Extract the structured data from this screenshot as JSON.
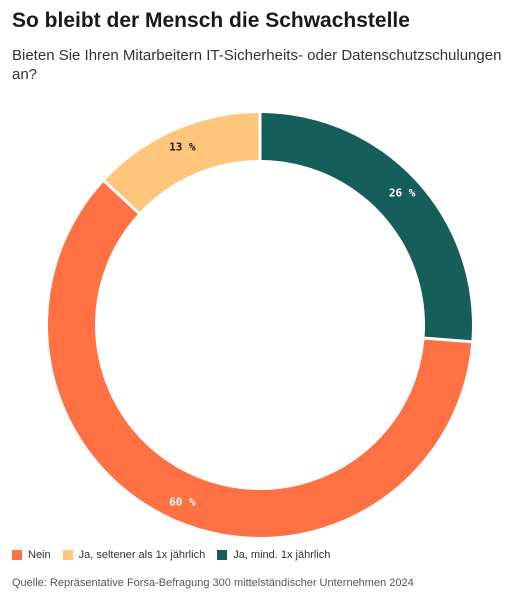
{
  "title": "So bleibt der Mensch die Schwachstelle",
  "subtitle": "Bieten Sie Ihren Mitarbeitern IT-Sicherheits- oder Datenschutzschulungen an?",
  "source": "Quelle: Repräsentative Forsa-Befragung 300 mittelständischer Unternehmen 2024",
  "chart_data": {
    "type": "pie",
    "donut": true,
    "title": "",
    "categories": [
      "Ja, mind. 1x jährlich",
      "Nein",
      "Ja, seltener als 1x jährlich"
    ],
    "values": [
      26,
      60,
      13
    ],
    "labels": [
      "26 %",
      "60 %",
      "13 %"
    ],
    "colors": [
      "#165e59",
      "#ff7043",
      "#ffc67b"
    ],
    "label_colors": [
      "#ffffff",
      "#ffffff",
      "#1a1a1a"
    ],
    "legend_placement": "bottom-left",
    "legend": [
      {
        "label": "Nein",
        "color": "#ff7043"
      },
      {
        "label": "Ja, seltener als 1x jährlich",
        "color": "#ffc67b"
      },
      {
        "label": "Ja, mind. 1x jährlich",
        "color": "#165e59"
      }
    ]
  }
}
